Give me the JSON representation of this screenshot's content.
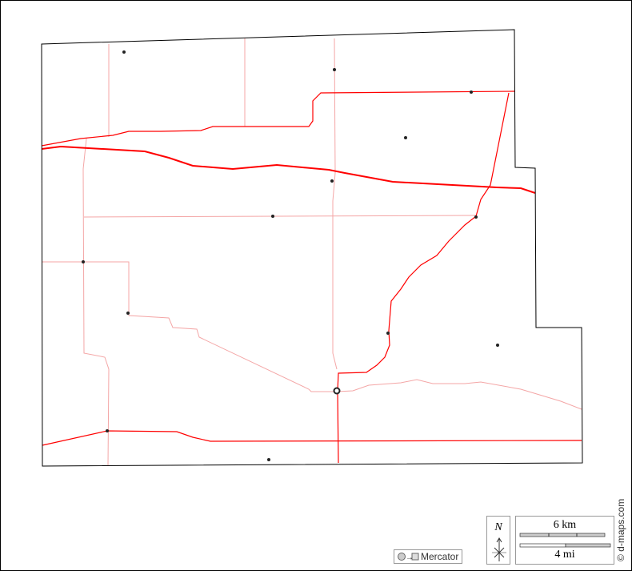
{
  "map": {
    "colors": {
      "boundary": "#000000",
      "highway": "#ff0000",
      "minor_road": "#f4a6a6",
      "place": "#222222"
    },
    "projection_label": "Mercator",
    "north_label": "N",
    "scale_km": "6 km",
    "scale_mi": "4 mi",
    "credit": "© d-maps.com"
  }
}
